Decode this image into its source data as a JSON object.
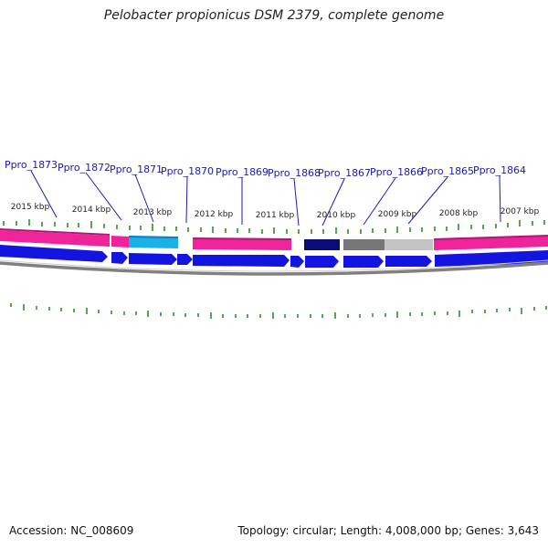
{
  "title": "Pelobacter propionicus DSM 2379, complete genome",
  "footer": {
    "accession": "Accession: NC_008609",
    "topology": "Topology: circular; Length: 4,008,000 bp; Genes: 3,643"
  },
  "kbp_labels": [
    "2015 kbp",
    "2014 kbp",
    "2013 kbp",
    "2012 kbp",
    "2011 kbp",
    "2010 kbp",
    "2009 kbp",
    "2008 kbp",
    "2007 kbp"
  ],
  "gene_labels": [
    "Ppro_1873",
    "Ppro_1872",
    "Ppro_1871",
    "Ppro_1870",
    "Ppro_1869",
    "Ppro_1868",
    "Ppro_1867",
    "Ppro_1866",
    "Ppro_1865",
    "Ppro_1864"
  ],
  "colors": {
    "pink": "#f0249a",
    "cyan": "#1ab0e8",
    "navy": "#0c0c78",
    "gray": "#777777",
    "lightgray": "#c4c4c4",
    "blue": "#1414e0",
    "tick": "#1a8a1a",
    "backbone": "#808080",
    "label": "#1a1ab8"
  }
}
